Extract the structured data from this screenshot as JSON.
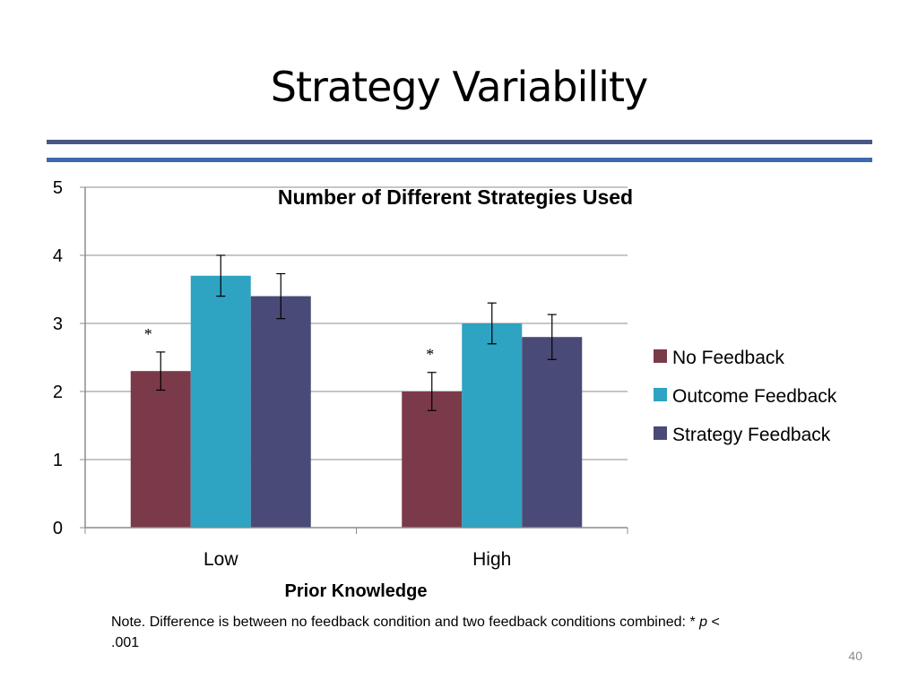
{
  "slide": {
    "title": "Strategy Variability",
    "page_number": "40",
    "note": {
      "prefix": "Note. Difference is between no feedback condition and two feedback conditions combined: * ",
      "p_symbol": "p",
      "suffix": " < .001"
    }
  },
  "chart_data": {
    "type": "bar",
    "title": "Number of Different Strategies Used",
    "xlabel": "Prior Knowledge",
    "ylabel": "",
    "categories": [
      "Low",
      "High"
    ],
    "ylim": [
      0,
      5
    ],
    "yticks": [
      "0",
      "1",
      "2",
      "3",
      "4",
      "5"
    ],
    "grid": true,
    "legend_position": "right",
    "significance_marker": "*",
    "significant_categories": [
      "Low",
      "High"
    ],
    "series": [
      {
        "name": "No Feedback",
        "color": "#7b3a4a",
        "values": [
          2.3,
          2.0
        ],
        "error": [
          0.28,
          0.28
        ]
      },
      {
        "name": "Outcome Feedback",
        "color": "#2ea3c2",
        "values": [
          3.7,
          3.0
        ],
        "error": [
          0.3,
          0.3
        ]
      },
      {
        "name": "Strategy Feedback",
        "color": "#4a4a78",
        "values": [
          3.4,
          2.8
        ],
        "error": [
          0.33,
          0.33
        ]
      }
    ]
  }
}
